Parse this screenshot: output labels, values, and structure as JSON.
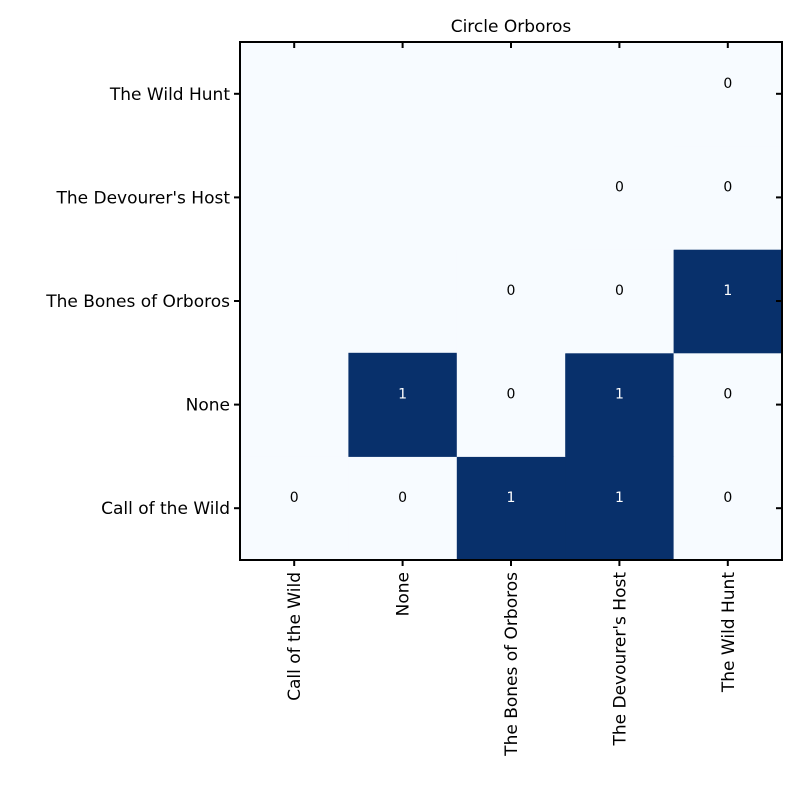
{
  "chart_data": {
    "type": "heatmap",
    "title": "Circle Orboros",
    "xlabel": "",
    "ylabel": "",
    "x_categories": [
      "Call of the Wild",
      "None",
      "The Bones of Orboros",
      "The Devourer's Host",
      "The Wild Hunt"
    ],
    "y_categories": [
      "Call of the Wild",
      "None",
      "The Bones of Orboros",
      "The Devourer's Host",
      "The Wild Hunt"
    ],
    "values": [
      [
        0,
        0,
        1,
        1,
        0
      ],
      [
        null,
        1,
        0,
        1,
        0
      ],
      [
        null,
        null,
        0,
        0,
        1
      ],
      [
        null,
        null,
        null,
        0,
        0
      ],
      [
        null,
        null,
        null,
        null,
        0
      ]
    ],
    "colors": {
      "low": "#f7fbff",
      "high": "#08306b",
      "label_on_low": "#000000",
      "label_on_high": "#ffffff"
    },
    "grid": false,
    "legend": "none"
  }
}
